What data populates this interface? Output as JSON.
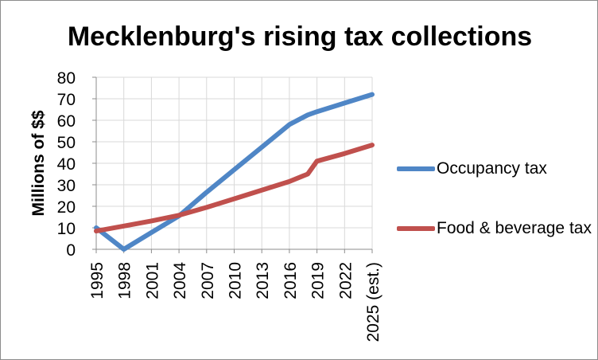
{
  "chart_data": {
    "type": "line",
    "title": "Mecklenburg's rising tax collections",
    "xlabel": "",
    "ylabel": "Millions of $$",
    "ylim": [
      0,
      80
    ],
    "yticks": [
      "0",
      "10",
      "20",
      "30",
      "40",
      "50",
      "60",
      "70",
      "80"
    ],
    "categories": [
      "1995",
      "1998",
      "2001",
      "2004",
      "2007",
      "2010",
      "2013",
      "2016",
      "2019",
      "2022",
      "2025 (est.)"
    ],
    "x_numeric": [
      1995,
      1998,
      2001,
      2004,
      2007,
      2010,
      2013,
      2016,
      2019,
      2022,
      2025
    ],
    "grid": "horizontal",
    "legend_position": "right",
    "series": [
      {
        "name": "Occupancy tax",
        "color": "#4f86c6",
        "x": [
          1995,
          1998,
          2001,
          2004,
          2007,
          2010,
          2013,
          2016,
          2018,
          2019,
          2022,
          2025
        ],
        "values": [
          10,
          0,
          7.8,
          15.5,
          26.5,
          37,
          47.5,
          58,
          62.5,
          64,
          68,
          72
        ]
      },
      {
        "name": "Food & beverage tax",
        "color": "#c0504d",
        "x": [
          1995,
          1998,
          2001,
          2004,
          2007,
          2010,
          2013,
          2016,
          2018,
          2019,
          2022,
          2025
        ],
        "values": [
          8.5,
          10.8,
          13.2,
          15.8,
          19.5,
          23.5,
          27.5,
          31.5,
          35,
          41,
          44.5,
          48.5
        ]
      }
    ]
  }
}
